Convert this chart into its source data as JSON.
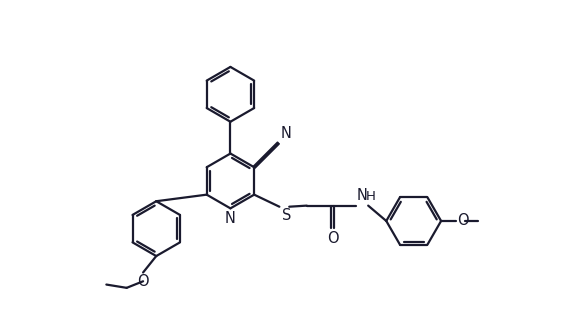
{
  "bg_color": "#ffffff",
  "line_color": "#1a1a2e",
  "lw": 1.6,
  "fs": 10.5,
  "r": 0.5,
  "doff": 0.055,
  "figsize": [
    5.65,
    3.29
  ],
  "dpi": 100,
  "xlim": [
    0.2,
    10.0
  ],
  "ylim": [
    0.3,
    6.2
  ]
}
